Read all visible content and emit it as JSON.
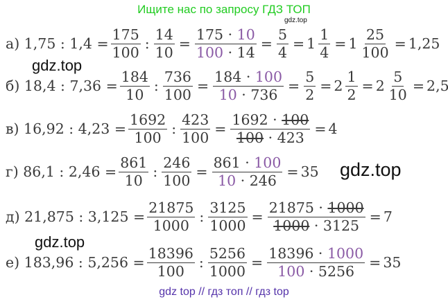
{
  "header": {
    "text": "Ищите нас по запросу ГДЗ ТОП"
  },
  "watermarks": {
    "small": "gdz.top",
    "w1": "gdz.top",
    "w2": "gdz.top",
    "w3": "gdz.top"
  },
  "footer": {
    "text": "gdz top  //  гдз топ  //  гдз top"
  },
  "rows": {
    "a": {
      "label": "а) 1,75 : 1,4 =",
      "f1n": "175",
      "f1d": "100",
      "f2n": "14",
      "f2d": "10",
      "f3n_a": "175 · ",
      "f3n_b": "10",
      "f3d_a": "100",
      "f3d_b": " · 14",
      "f4n": "5",
      "f4d": "4",
      "m1w": "1",
      "m1n": "1",
      "m1d": "4",
      "m2w": "1",
      "m2n": "25",
      "m2d": "100",
      "result": "1,25"
    },
    "b": {
      "label": "б) 18,4 : 7,36 =",
      "f1n": "184",
      "f1d": "10",
      "f2n": "736",
      "f2d": "100",
      "f3n_a": "184 · ",
      "f3n_b": "100",
      "f3d_a": "10",
      "f3d_b": " · 736",
      "f4n": "5",
      "f4d": "2",
      "m1w": "2",
      "m1n": "1",
      "m1d": "2",
      "m2w": "2",
      "m2n": "5",
      "m2d": "10",
      "result": "2,5"
    },
    "c": {
      "label": "в) 16,92 : 4,23 =",
      "f1n": "1692",
      "f1d": "100",
      "f2n": "423",
      "f2d": "100",
      "f3n_a": "1692 · ",
      "f3n_b": "100",
      "f3d_a": "100",
      "f3d_b": " · 423",
      "result": "4"
    },
    "d": {
      "label": "г) 86,1 : 2,46 =",
      "f1n": "861",
      "f1d": "10",
      "f2n": "246",
      "f2d": "100",
      "f3n_a": "861 · ",
      "f3n_b": "100",
      "f3d_a": "10",
      "f3d_b": " · 246",
      "result": "35"
    },
    "e": {
      "label": "д) 21,875 : 3,125 =",
      "f1n": "21875",
      "f1d": "1000",
      "f2n": "3125",
      "f2d": "1000",
      "f3n_a": "21875 · ",
      "f3n_b": "1000",
      "f3d_a": "1000",
      "f3d_b": " · 3125",
      "result": "7"
    },
    "f": {
      "label": "е) 183,96 : 5,256 =",
      "f1n": "18396",
      "f1d": "100",
      "f2n": "5256",
      "f2d": "1000",
      "f3n_a": "18396 · ",
      "f3n_b": "1000",
      "f3d_a": "100",
      "f3d_b": " · 5256",
      "result": "35"
    }
  },
  "colors": {
    "highlight": "#8a5aa5",
    "header": "#22cc22",
    "footer": "#5533aa"
  }
}
